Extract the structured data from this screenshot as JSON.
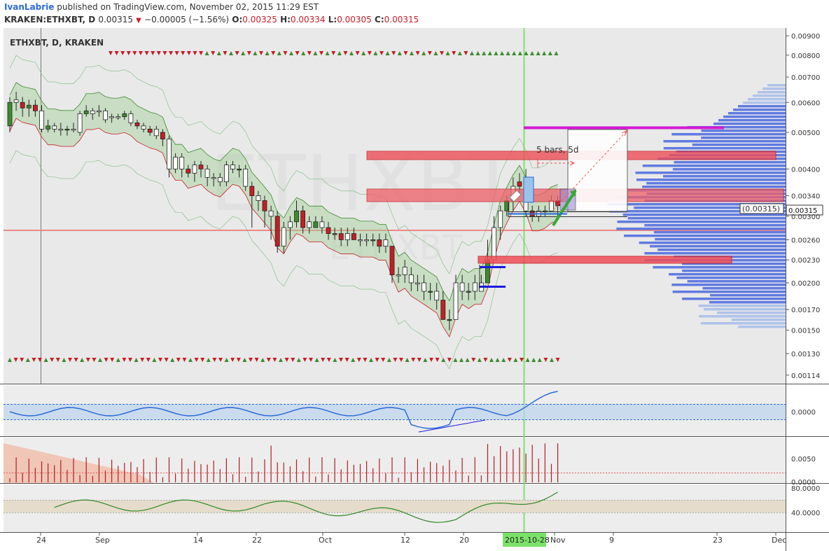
{
  "header": {
    "author": "IvanLabrie",
    "published_text": "published on TradingView.com, November 02, 2015 11:29 EST",
    "symbol_line": "KRAKEN:ETHXBT, D",
    "last": "0.00315",
    "change": "−0.00005 (−1.56%)",
    "open_label": "O:",
    "open": "0.00325",
    "high_label": "H:",
    "high": "0.00334",
    "low_label": "L:",
    "low": "0.00305",
    "close_label": "C:",
    "close": "0.00315"
  },
  "chart_title": "ETHXBT, D, KRAKEN",
  "watermark": {
    "big": "ETHXBT",
    "small": "ETHXBT"
  },
  "colors": {
    "up": "#3c8b2e",
    "down": "#c81d25",
    "accent": "#2a6bd8",
    "magenta": "#d21bd2",
    "highlight": "#7ce36a"
  },
  "chart_data": {
    "type": "candlestick",
    "scale": "log",
    "y_range": [
      0.00112,
      0.0092
    ],
    "y_ticks": [
      "0.00900",
      "0.00800",
      "0.00700",
      "0.00600",
      "0.00500",
      "0.00400",
      "0.00340",
      "0.00300",
      "0.00260",
      "0.00230",
      "0.00200",
      "0.00170",
      "0.00150",
      "0.00130",
      "0.00114"
    ],
    "y_tick_values": [
      0.009,
      0.008,
      0.007,
      0.006,
      0.005,
      0.004,
      0.0034,
      0.003,
      0.0026,
      0.0023,
      0.002,
      0.0017,
      0.0015,
      0.0013,
      0.00114
    ],
    "x_tick_labels": [
      "24",
      "Sep",
      "14",
      "22",
      "Oct",
      "12",
      "20",
      "Nov",
      "9",
      "23",
      "Dec"
    ],
    "highlight_date": "2015-10-28",
    "price_label": "0.00315",
    "measure_label": "(0.00315)",
    "annotation_bars": "5 bars, 5d",
    "candles": [
      [
        0.0052,
        0.006,
        0.0062,
        0.005
      ],
      [
        0.006,
        0.0061,
        0.0064,
        0.0057
      ],
      [
        0.006,
        0.0058,
        0.0062,
        0.0055
      ],
      [
        0.0058,
        0.0059,
        0.0061,
        0.0055
      ],
      [
        0.0059,
        0.0057,
        0.0061,
        0.0055
      ],
      [
        0.0057,
        0.0051,
        0.0059,
        0.005
      ],
      [
        0.0051,
        0.0052,
        0.0054,
        0.005
      ],
      [
        0.0052,
        0.0051,
        0.0053,
        0.005
      ],
      [
        0.0051,
        0.0051,
        0.0053,
        0.0049
      ],
      [
        0.0051,
        0.0051,
        0.0052,
        0.0049
      ],
      [
        0.0051,
        0.0051,
        0.0053,
        0.005
      ],
      [
        0.005,
        0.0056,
        0.0057,
        0.0049
      ],
      [
        0.0056,
        0.0057,
        0.0059,
        0.0055
      ],
      [
        0.0057,
        0.0056,
        0.0058,
        0.0054
      ],
      [
        0.0057,
        0.0057,
        0.0059,
        0.0055
      ],
      [
        0.0057,
        0.0054,
        0.0058,
        0.0053
      ],
      [
        0.0055,
        0.0055,
        0.0056,
        0.0053
      ],
      [
        0.0055,
        0.0055,
        0.0056,
        0.0054
      ],
      [
        0.0055,
        0.0056,
        0.0057,
        0.0054
      ],
      [
        0.0056,
        0.0053,
        0.0057,
        0.0052
      ],
      [
        0.0053,
        0.0052,
        0.0054,
        0.0051
      ],
      [
        0.0052,
        0.0051,
        0.0053,
        0.005
      ],
      [
        0.0051,
        0.005,
        0.0052,
        0.0049
      ],
      [
        0.0051,
        0.0049,
        0.0052,
        0.0048
      ],
      [
        0.005,
        0.0048,
        0.0051,
        0.0046
      ],
      [
        0.0048,
        0.004,
        0.0049,
        0.0038
      ],
      [
        0.004,
        0.0043,
        0.0044,
        0.0039
      ],
      [
        0.0043,
        0.004,
        0.0044,
        0.0038
      ],
      [
        0.004,
        0.0039,
        0.0041,
        0.0038
      ],
      [
        0.0039,
        0.0041,
        0.0042,
        0.0037
      ],
      [
        0.0041,
        0.004,
        0.0042,
        0.0038
      ],
      [
        0.004,
        0.0038,
        0.0041,
        0.0036
      ],
      [
        0.0038,
        0.0038,
        0.0039,
        0.0036
      ],
      [
        0.0038,
        0.0037,
        0.0039,
        0.0036
      ],
      [
        0.0037,
        0.0041,
        0.0042,
        0.0036
      ],
      [
        0.0041,
        0.004,
        0.0042,
        0.0039
      ],
      [
        0.004,
        0.004,
        0.0041,
        0.0038
      ],
      [
        0.004,
        0.0036,
        0.0041,
        0.0035
      ],
      [
        0.0036,
        0.0034,
        0.0037,
        0.0028
      ],
      [
        0.0034,
        0.0033,
        0.0035,
        0.0031
      ],
      [
        0.0033,
        0.0031,
        0.0034,
        0.0028
      ],
      [
        0.0031,
        0.003,
        0.0032,
        0.0026
      ],
      [
        0.003,
        0.0025,
        0.0031,
        0.0024
      ],
      [
        0.0025,
        0.0028,
        0.0029,
        0.0024
      ],
      [
        0.0028,
        0.0029,
        0.003,
        0.0026
      ],
      [
        0.0029,
        0.0031,
        0.0033,
        0.0028
      ],
      [
        0.0031,
        0.0028,
        0.0032,
        0.0027
      ],
      [
        0.0029,
        0.0028,
        0.003,
        0.0027
      ],
      [
        0.0028,
        0.0029,
        0.003,
        0.0028
      ],
      [
        0.0029,
        0.0028,
        0.003,
        0.0027
      ],
      [
        0.0028,
        0.0027,
        0.0029,
        0.0026
      ],
      [
        0.0027,
        0.0027,
        0.0028,
        0.0026
      ],
      [
        0.0027,
        0.0026,
        0.0028,
        0.0025
      ],
      [
        0.0026,
        0.0027,
        0.0028,
        0.0025
      ],
      [
        0.0027,
        0.0026,
        0.0028,
        0.0026
      ],
      [
        0.0026,
        0.0026,
        0.0027,
        0.0025
      ],
      [
        0.0026,
        0.0026,
        0.0027,
        0.0025
      ],
      [
        0.0026,
        0.0026,
        0.0027,
        0.0025
      ],
      [
        0.0026,
        0.0025,
        0.0027,
        0.0024
      ],
      [
        0.0026,
        0.0025,
        0.0027,
        0.0024
      ],
      [
        0.0025,
        0.0021,
        0.0025,
        0.002
      ],
      [
        0.0021,
        0.0021,
        0.0022,
        0.002
      ],
      [
        0.0021,
        0.0022,
        0.0023,
        0.002
      ],
      [
        0.0021,
        0.002,
        0.0022,
        0.0019
      ],
      [
        0.002,
        0.002,
        0.0021,
        0.0019
      ],
      [
        0.002,
        0.0019,
        0.0021,
        0.0018
      ],
      [
        0.0019,
        0.0019,
        0.002,
        0.0018
      ],
      [
        0.0019,
        0.0018,
        0.002,
        0.0017
      ],
      [
        0.0018,
        0.0016,
        0.0019,
        0.0016
      ],
      [
        0.0016,
        0.0016,
        0.0017,
        0.0015
      ],
      [
        0.0016,
        0.002,
        0.0021,
        0.0016
      ],
      [
        0.002,
        0.0019,
        0.0021,
        0.0018
      ],
      [
        0.0019,
        0.0019,
        0.002,
        0.0018
      ],
      [
        0.0019,
        0.002,
        0.0021,
        0.0018
      ],
      [
        0.0019,
        0.002,
        0.0021,
        0.0019
      ],
      [
        0.002,
        0.0023,
        0.0026,
        0.002
      ],
      [
        0.0023,
        0.0028,
        0.003,
        0.0023
      ],
      [
        0.0028,
        0.0031,
        0.0032,
        0.0026
      ],
      [
        0.0031,
        0.0033,
        0.0034,
        0.003
      ],
      [
        0.0033,
        0.0036,
        0.0038,
        0.0031
      ],
      [
        0.0037,
        0.0036,
        0.0039,
        0.0034
      ],
      [
        0.0037,
        0.0031,
        0.004,
        0.003
      ],
      [
        0.0031,
        0.003,
        0.0032,
        0.0029
      ],
      [
        0.003,
        0.0031,
        0.0032,
        0.0029
      ],
      [
        0.0031,
        0.0031,
        0.0032,
        0.003
      ],
      [
        0.0031,
        0.0033,
        0.0034,
        0.0031
      ],
      [
        0.0033,
        0.0032,
        0.0034,
        0.003
      ]
    ],
    "panels": {
      "oscillator_ticks": [
        "0.0000"
      ],
      "volume_ticks": [
        "0.0050",
        "0.0000"
      ],
      "third_ticks": [
        "80.0000",
        "40.0000"
      ]
    }
  }
}
